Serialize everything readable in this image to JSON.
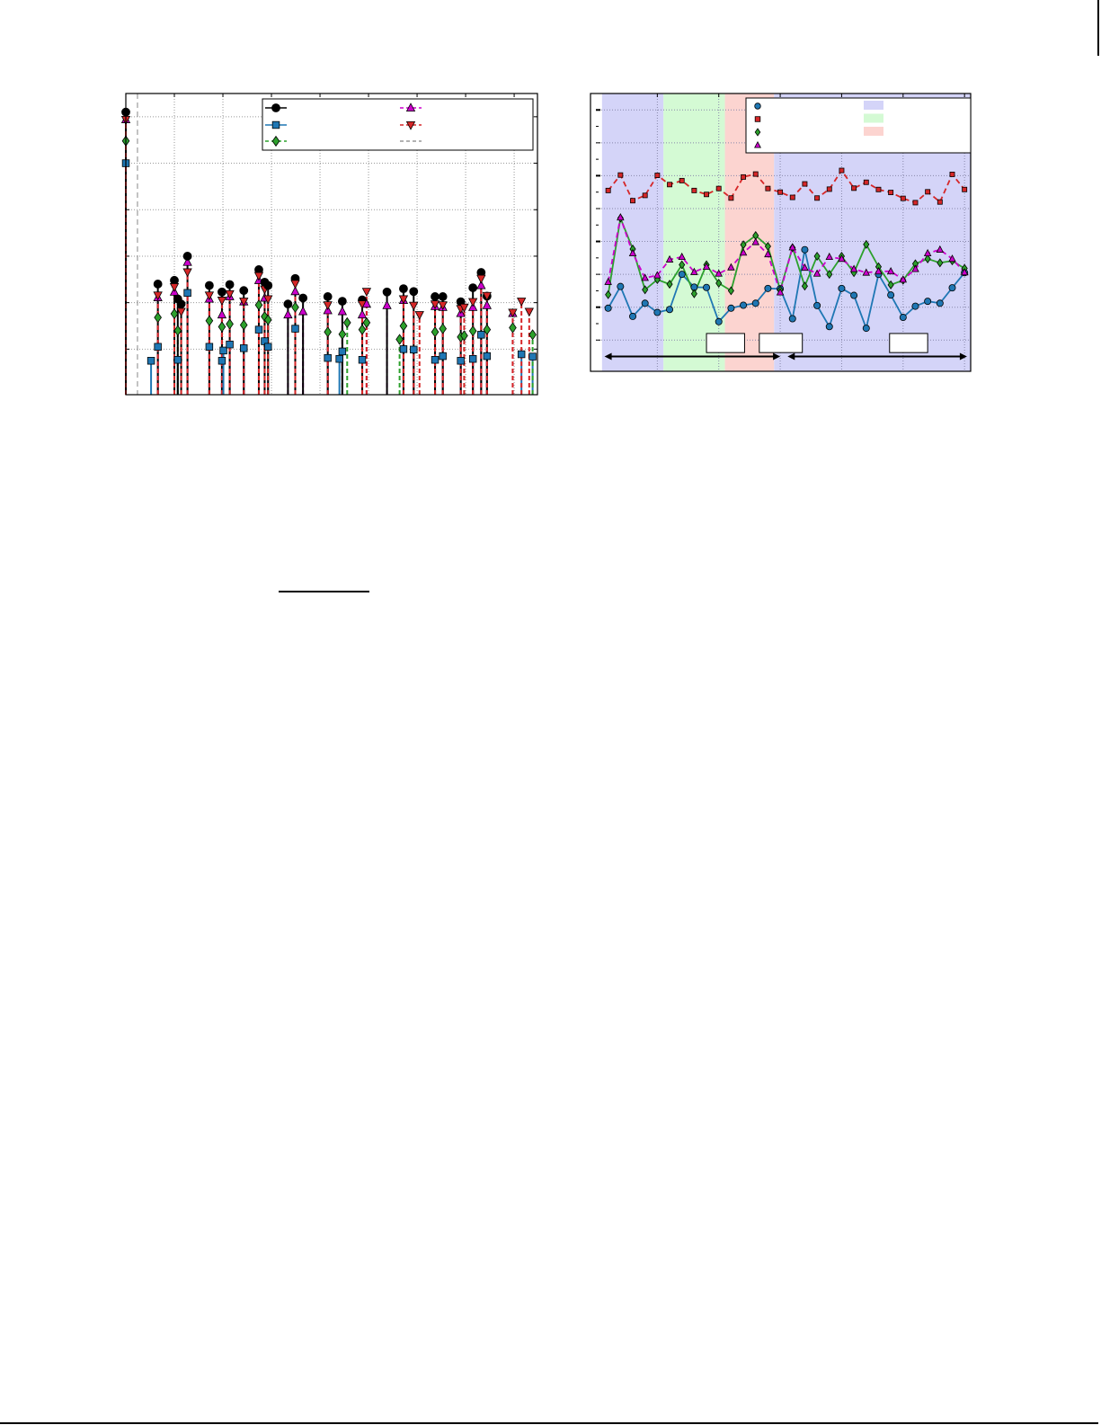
{
  "chart_data": [
    {
      "type": "stem",
      "title": "",
      "xlabel": "",
      "ylabel": "",
      "xlim": [
        0,
        8.48
      ],
      "ylim": [
        0.02,
        6.5
      ],
      "grid": true,
      "legend_placement": "top-right",
      "reference_line_x": 0.24,
      "series": [
        {
          "key": "black",
          "marker": "circle",
          "color": "#000000",
          "dash": "solid"
        },
        {
          "key": "blue",
          "marker": "square",
          "color": "#1f77b4",
          "dash": "solid"
        },
        {
          "key": "green",
          "marker": "diamond",
          "color": "#2ca02c",
          "dash": "dashed"
        },
        {
          "key": "magenta",
          "marker": "triangle-up",
          "color": "#cc00cc",
          "dash": "dashed"
        },
        {
          "key": "red",
          "marker": "triangle-down",
          "color": "#d62728",
          "dash": "dashed"
        },
        {
          "key": "grey",
          "marker": "none",
          "color": "#999999",
          "dash": "dashed"
        }
      ],
      "stems": [
        {
          "x": 0,
          "black": 6.1,
          "blue": 5.0,
          "green": 5.48,
          "magenta": 5.94,
          "red": 5.94
        },
        {
          "x": 0.52,
          "blue": 0.75
        },
        {
          "x": 0.66,
          "black": 2.4,
          "blue": 1.05,
          "green": 1.68,
          "magenta": 2.11,
          "red": 2.16
        },
        {
          "x": 1.0,
          "black": 2.48,
          "green": 1.76,
          "magenta": 2.23,
          "red": 2.34
        },
        {
          "x": 1.07,
          "black": 2.08,
          "blue": 0.77,
          "green": 1.4
        },
        {
          "x": 1.14,
          "black": 1.97,
          "red": 1.81
        },
        {
          "x": 1.27,
          "black": 3.0,
          "blue": 2.21,
          "magenta": 2.87,
          "red": 2.66
        },
        {
          "x": 1.72,
          "black": 2.37,
          "blue": 1.05,
          "green": 1.61,
          "magenta": 2.08,
          "red": 2.16
        },
        {
          "x": 1.98,
          "black": 2.23,
          "blue": 0.75,
          "green": 1.48,
          "magenta": 1.74,
          "red": 2.05
        },
        {
          "x": 2.01,
          "blue": 0.97
        },
        {
          "x": 2.14,
          "black": 2.39,
          "blue": 1.1,
          "green": 1.54,
          "magenta": 2.13,
          "red": 2.19
        },
        {
          "x": 2.43,
          "black": 2.26,
          "blue": 1.02,
          "green": 1.52,
          "magenta": 2.02,
          "red": 2.03
        },
        {
          "x": 2.74,
          "black": 2.71,
          "blue": 1.42,
          "green": 1.95,
          "magenta": 2.48,
          "red": 2.58
        },
        {
          "x": 2.86,
          "black": 2.44,
          "blue": 1.17,
          "green": 1.7,
          "magenta": 2.1,
          "red": 2.29
        },
        {
          "x": 2.93,
          "black": 2.37,
          "blue": 1.05,
          "green": 1.63,
          "red": 2.08
        },
        {
          "x": 3.34,
          "black": 1.97,
          "magenta": 1.74
        },
        {
          "x": 3.49,
          "black": 2.52,
          "blue": 1.44,
          "green": 1.9,
          "magenta": 2.24,
          "red": 2.41
        },
        {
          "x": 3.65,
          "black": 2.1,
          "magenta": 1.81
        },
        {
          "x": 4.16,
          "black": 2.13,
          "blue": 0.81,
          "green": 1.37,
          "magenta": 1.83,
          "red": 1.95
        },
        {
          "x": 4.4,
          "blue": 0.79
        },
        {
          "x": 4.46,
          "black": 2.03,
          "blue": 0.95,
          "green": 1.32,
          "magenta": 1.81
        },
        {
          "x": 4.56,
          "green": 1.57
        },
        {
          "x": 4.87,
          "black": 2.06,
          "blue": 0.77,
          "green": 1.42,
          "magenta": 1.74,
          "red": 1.97
        },
        {
          "x": 4.96,
          "green": 1.57,
          "magenta": 1.97,
          "red": 2.24
        },
        {
          "x": 5.38,
          "black": 2.23,
          "magenta": 1.94
        },
        {
          "x": 5.64,
          "green": 1.21
        },
        {
          "x": 5.72,
          "black": 2.3,
          "blue": 1.0,
          "green": 1.5,
          "magenta": 2.05,
          "red": 2.08
        },
        {
          "x": 5.93,
          "black": 2.24,
          "blue": 0.99,
          "red": 1.94
        },
        {
          "x": 6.05,
          "red": 1.74
        },
        {
          "x": 6.37,
          "black": 2.13,
          "blue": 0.77,
          "green": 1.37,
          "magenta": 1.92,
          "red": 1.97
        },
        {
          "x": 6.53,
          "black": 2.13,
          "blue": 0.85,
          "green": 1.44,
          "magenta": 1.9,
          "red": 1.95
        },
        {
          "x": 6.9,
          "black": 2.02,
          "blue": 0.75,
          "green": 1.26,
          "magenta": 1.77,
          "red": 1.87
        },
        {
          "x": 6.97,
          "green": 1.29,
          "red": 1.9
        },
        {
          "x": 7.15,
          "black": 2.32,
          "blue": 0.79,
          "green": 1.39,
          "magenta": 1.9,
          "red": 2.02
        },
        {
          "x": 7.32,
          "black": 2.65,
          "blue": 1.31,
          "magenta": 2.37,
          "red": 2.52
        },
        {
          "x": 7.44,
          "black": 2.14,
          "blue": 0.85,
          "green": 1.42,
          "magenta": 1.94,
          "red": 2.15
        },
        {
          "x": 7.97,
          "green": 1.46,
          "magenta": 1.77,
          "red": 1.79
        },
        {
          "x": 8.15,
          "blue": 0.89,
          "red": 2.03
        },
        {
          "x": 8.31,
          "red": 1.81
        },
        {
          "x": 8.38,
          "blue": 0.84,
          "green": 1.31
        }
      ]
    },
    {
      "type": "line",
      "title": "",
      "xlabel": "",
      "ylabel": "",
      "xlim": [
        0,
        30.5
      ],
      "ylim": [
        0.05,
        8.5
      ],
      "grid": true,
      "legend_placement": "top-right",
      "x": [
        1,
        2,
        3,
        4,
        5,
        6,
        7,
        8,
        9,
        10,
        11,
        12,
        13,
        14,
        15,
        16,
        17,
        18,
        19,
        20,
        21,
        22,
        23,
        24,
        25,
        26,
        27,
        28,
        29,
        30
      ],
      "series": [
        {
          "key": "blue",
          "marker": "circle",
          "color": "#1f77b4",
          "dash": "solid",
          "values": [
            1.97,
            2.63,
            1.72,
            2.12,
            1.84,
            1.93,
            3.0,
            2.61,
            2.6,
            1.56,
            1.97,
            2.06,
            2.12,
            2.57,
            2.56,
            1.65,
            3.75,
            2.05,
            1.41,
            2.57,
            2.36,
            1.36,
            3.0,
            2.37,
            1.69,
            2.03,
            2.18,
            2.12,
            2.59,
            3.05
          ]
        },
        {
          "key": "red",
          "marker": "square",
          "color": "#d62728",
          "dash": "dashed",
          "values": [
            5.55,
            6.02,
            5.24,
            5.4,
            6.01,
            5.73,
            5.85,
            5.55,
            5.43,
            5.61,
            5.32,
            5.96,
            6.05,
            5.61,
            5.5,
            5.34,
            5.75,
            5.32,
            5.59,
            6.16,
            5.62,
            5.8,
            5.58,
            5.49,
            5.31,
            5.18,
            5.51,
            5.2,
            6.04,
            5.58
          ]
        },
        {
          "key": "green",
          "marker": "diamond",
          "color": "#2ca02c",
          "dash": "solid",
          "values": [
            2.38,
            4.71,
            3.77,
            2.53,
            2.84,
            2.7,
            3.29,
            2.41,
            3.29,
            2.73,
            2.5,
            3.9,
            4.18,
            3.85,
            2.52,
            3.81,
            2.64,
            3.55,
            3.0,
            3.55,
            3.05,
            3.91,
            3.23,
            2.68,
            2.82,
            3.32,
            3.47,
            3.35,
            3.41,
            3.18
          ]
        },
        {
          "key": "magenta",
          "marker": "triangle-up",
          "color": "#cc00cc",
          "dash": "dashed",
          "values": [
            2.77,
            4.73,
            3.64,
            2.89,
            2.97,
            3.45,
            3.53,
            3.07,
            3.23,
            3.02,
            3.21,
            3.66,
            3.98,
            3.61,
            2.45,
            3.82,
            3.2,
            3.02,
            3.53,
            3.47,
            3.16,
            3.05,
            3.09,
            3.09,
            2.84,
            3.16,
            3.64,
            3.75,
            3.47,
            3.06
          ]
        }
      ],
      "bands": [
        {
          "from": 0.5,
          "to": 5.5,
          "color": "#d4d4f8"
        },
        {
          "from": 5.5,
          "to": 10.5,
          "color": "#d4fad4"
        },
        {
          "from": 10.5,
          "to": 14.5,
          "color": "#fcd4d0"
        },
        {
          "from": 14.5,
          "to": 30.5,
          "color": "#d4d4f8"
        }
      ],
      "legend_swatches": [
        "#d4d4f8",
        "#d4fad4",
        "#fcd4d0"
      ],
      "annotation_boxes": [
        {
          "from": 9.0,
          "to": 12.1
        },
        {
          "from": 13.3,
          "to": 16.8
        },
        {
          "from": 23.9,
          "to": 27.0
        }
      ],
      "arrows": [
        {
          "from": 0.7,
          "to": 15.0,
          "y": 0.5
        },
        {
          "from": 15.6,
          "to": 30.2,
          "y": 0.5
        }
      ]
    }
  ]
}
